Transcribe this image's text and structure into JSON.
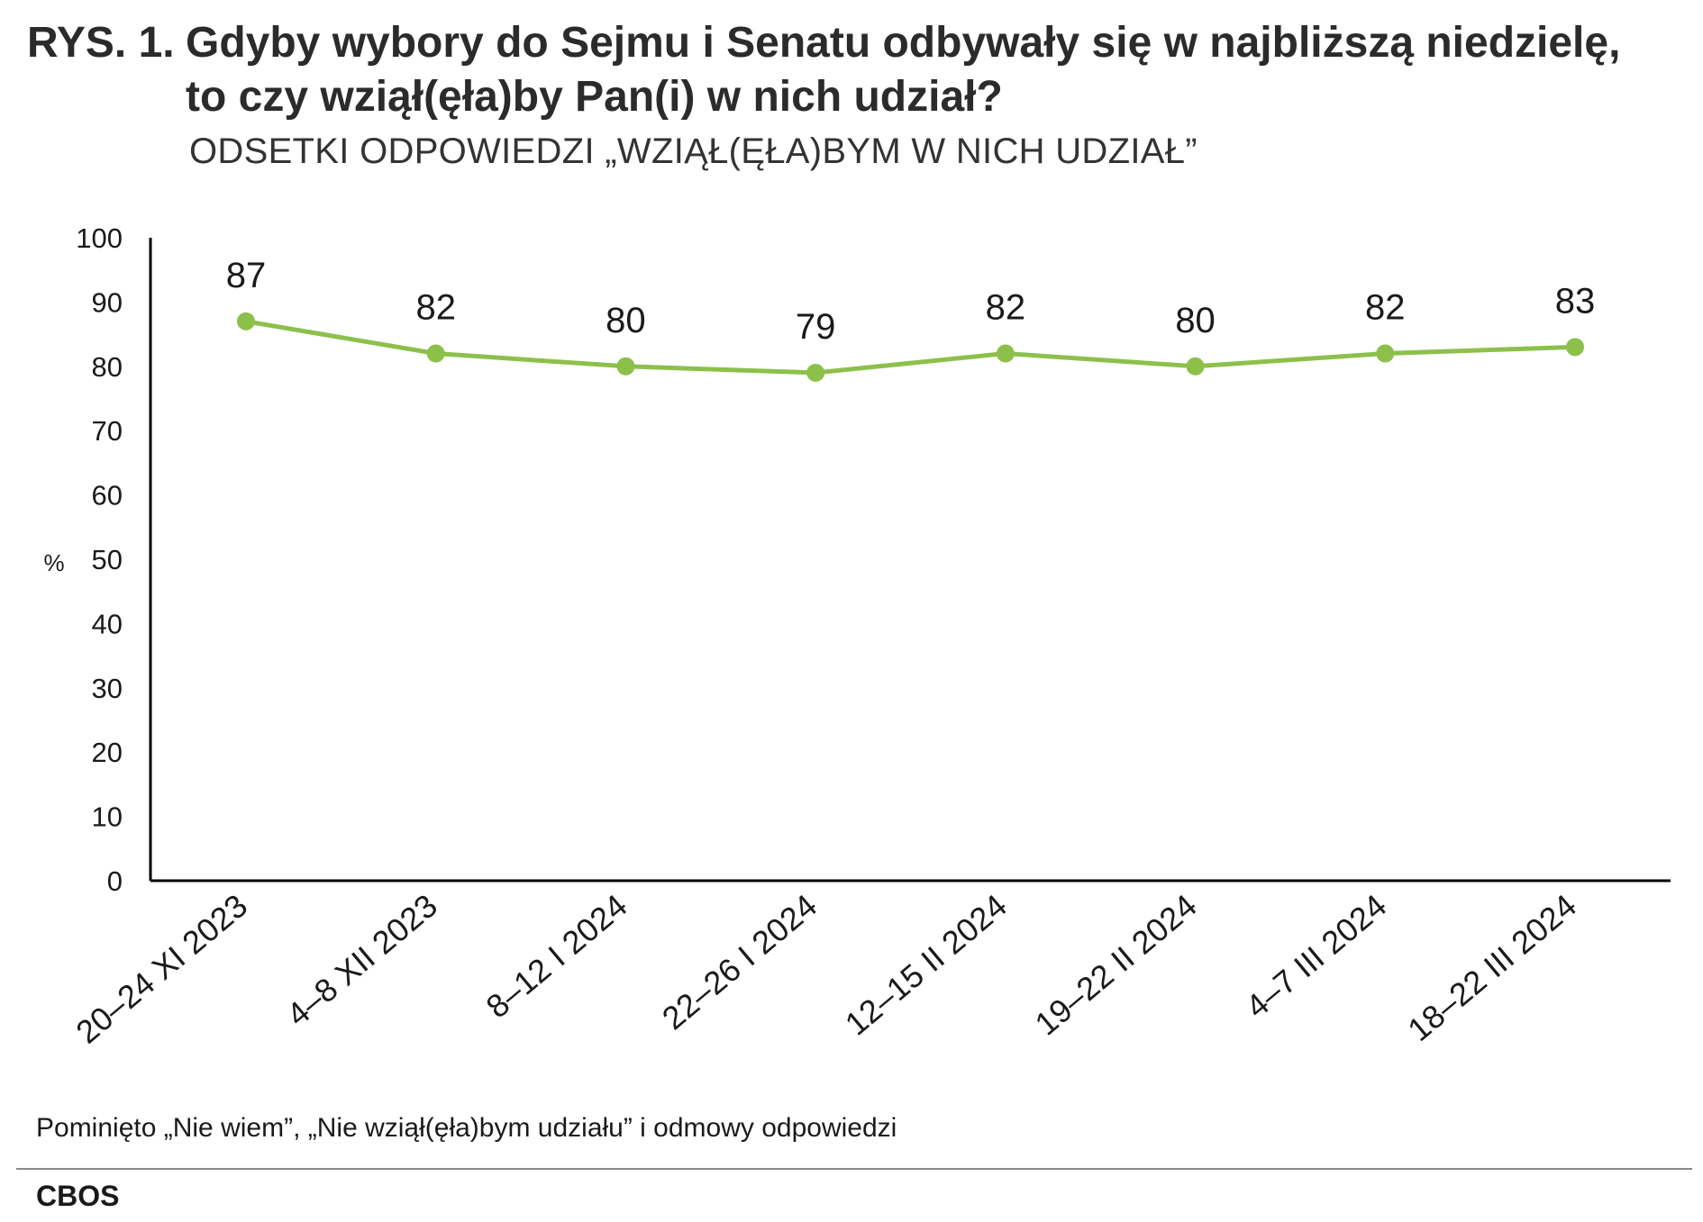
{
  "header": {
    "title_prefix": "RYS. 1.",
    "title_line1": "Gdyby wybory do Sejmu i Senatu odbywały się w najbliższą niedzielę,",
    "title_line2": "to czy wziął(ęła)by Pan(i) w nich udział?",
    "subtitle": "ODSETKI ODPOWIEDZI „WZIĄŁ(ĘŁA)BYM W NICH UDZIAŁ”"
  },
  "chart_data": {
    "type": "line",
    "ylabel": "%",
    "ylim": [
      0,
      100
    ],
    "yticks": [
      0,
      10,
      20,
      30,
      40,
      50,
      60,
      70,
      80,
      90,
      100
    ],
    "categories": [
      "20–24 XI 2023",
      "4–8 XII 2023",
      "8–12 I 2024",
      "22–26 I 2024",
      "12–15 II 2024",
      "19–22 II 2024",
      "4–7 III 2024",
      "18–22 III 2024"
    ],
    "series": [
      {
        "values": [
          87,
          82,
          80,
          79,
          82,
          80,
          82,
          83
        ],
        "color": "#8dc04b"
      }
    ],
    "data_labels": true,
    "grid": false
  },
  "footer": {
    "note": "Pominięto „Nie wiem”, „Nie wziął(ęła)bym udziału” i odmowy odpowiedzi",
    "source": "CBOS"
  }
}
